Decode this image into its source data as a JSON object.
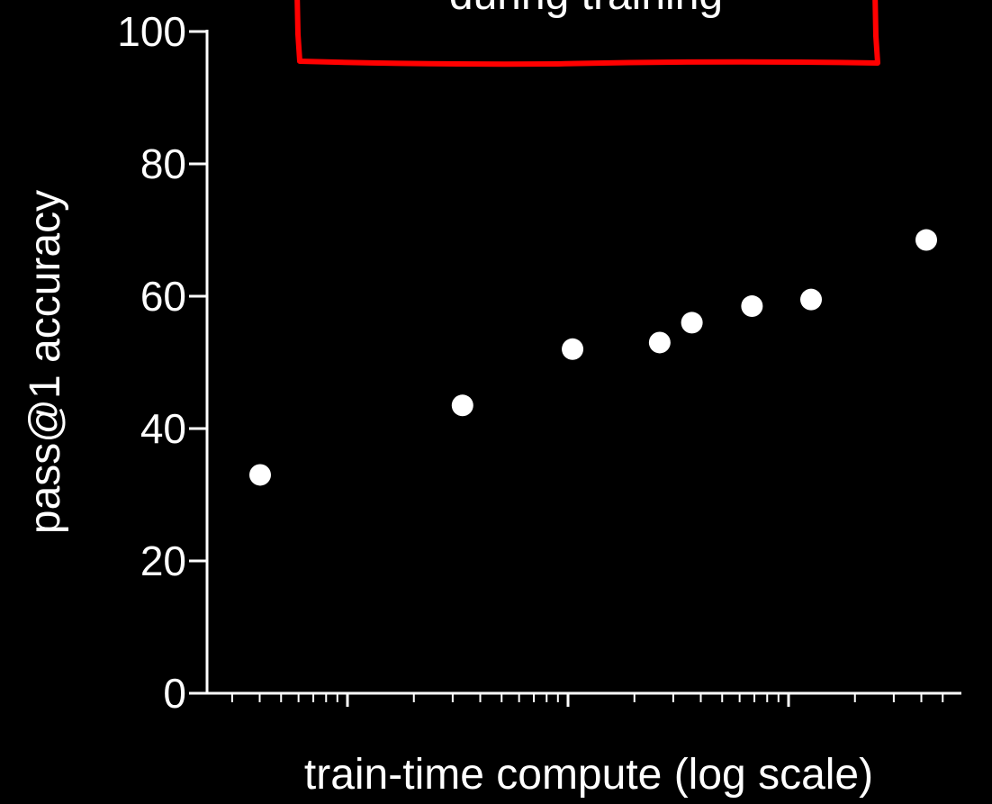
{
  "chart_data": {
    "type": "scatter",
    "title": "",
    "xlabel": "train-time compute (log scale)",
    "ylabel": "pass@1 accuracy",
    "x_scale": "log",
    "x_tick_labels_shown": false,
    "ylim": [
      0,
      100
    ],
    "yticks": [
      0,
      20,
      40,
      60,
      80,
      100
    ],
    "x": [
      0.5,
      2.5,
      6,
      12,
      15.5,
      25,
      40,
      100
    ],
    "y": [
      33,
      43.5,
      52,
      53,
      56,
      58.5,
      59.5,
      68.5
    ],
    "marker_color": "#ffffff",
    "grid": false,
    "legend": "none",
    "annotation_box": {
      "text": "during training",
      "border_color": "#ff0000"
    }
  }
}
